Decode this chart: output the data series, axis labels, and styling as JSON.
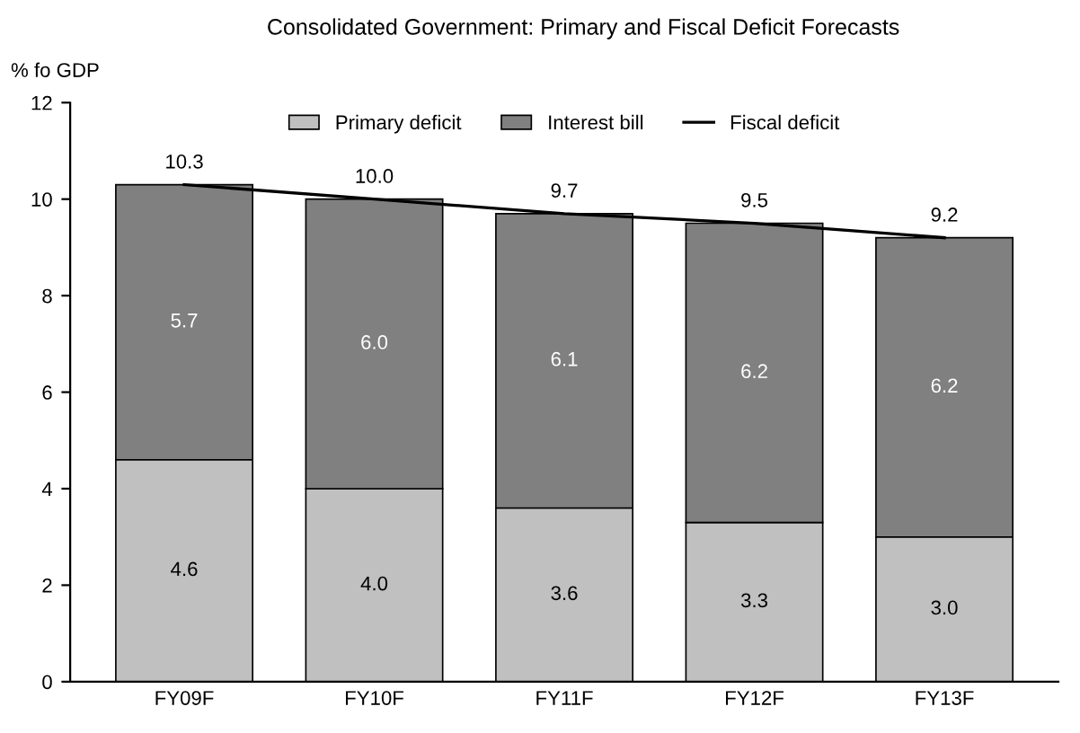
{
  "chart_data": {
    "type": "bar",
    "title": "Consolidated Government: Primary and Fiscal Deficit Forecasts",
    "ylabel": "% fo GDP",
    "categories": [
      "FY09F",
      "FY10F",
      "FY11F",
      "FY12F",
      "FY13F"
    ],
    "stacked": true,
    "legend": "top",
    "grid": false,
    "ylim": [
      0,
      12
    ],
    "yticks": [
      0,
      2,
      4,
      6,
      8,
      10,
      12
    ],
    "series": [
      {
        "name": "Primary deficit",
        "color": "#c0c0c0",
        "values": [
          4.6,
          4.0,
          3.6,
          3.3,
          3.0
        ],
        "value_labels": [
          "4.6",
          "4.0",
          "3.6",
          "3.3",
          "3.0"
        ]
      },
      {
        "name": "Interest bill",
        "color": "#808080",
        "values": [
          5.7,
          6.0,
          6.1,
          6.2,
          6.2
        ],
        "value_labels": [
          "5.7",
          "6.0",
          "6.1",
          "6.2",
          "6.2"
        ]
      },
      {
        "name": "Fiscal deficit",
        "type": "line",
        "color": "#000000",
        "values": [
          10.3,
          10.0,
          9.7,
          9.5,
          9.2
        ],
        "value_labels": [
          "10.3",
          "10.0",
          "9.7",
          "9.5",
          "9.2"
        ]
      }
    ]
  }
}
